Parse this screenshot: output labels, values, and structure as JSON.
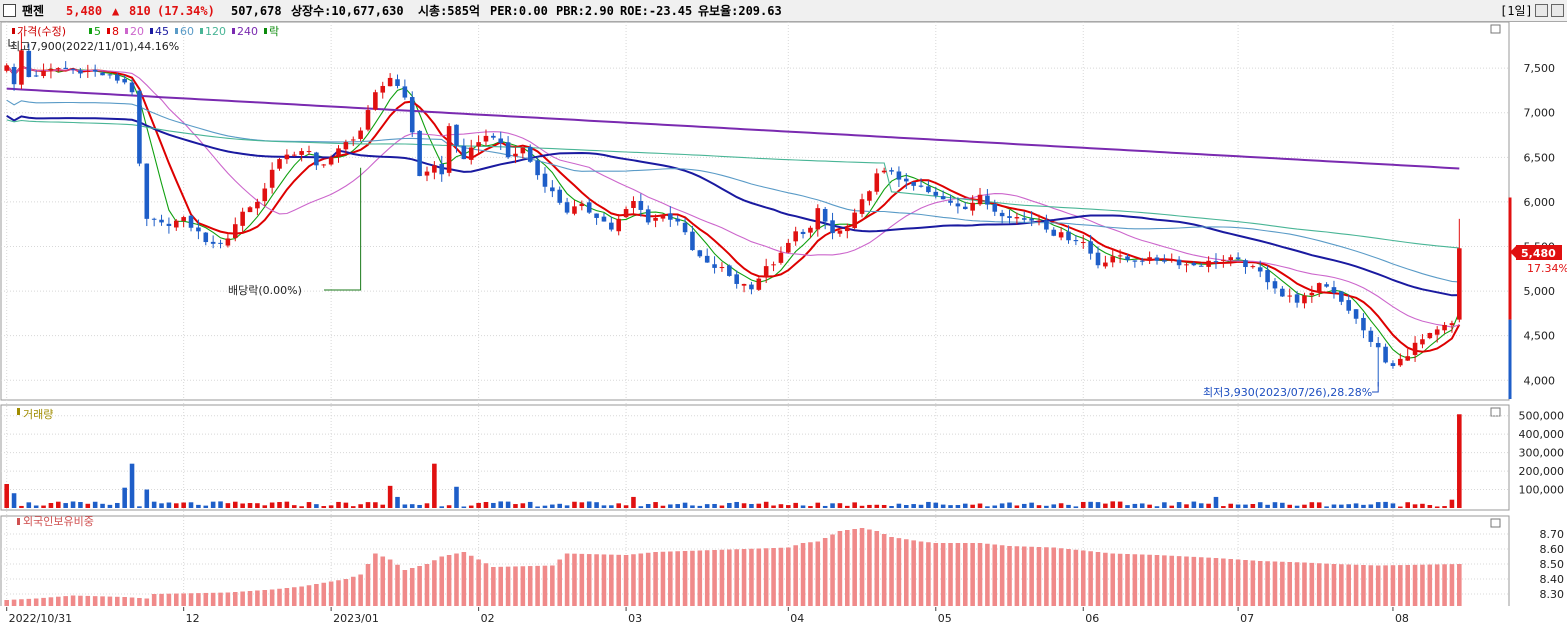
{
  "header": {
    "name": "팬젠",
    "price": "5,480",
    "arrow": "▲",
    "change": "810",
    "change_pct": "(17.34%)",
    "volume": "507,678",
    "listed": "상장수:10,677,630",
    "mktcap": "시총:585억",
    "per": "PER:0.00",
    "pbr": "PBR:2.90",
    "roe": "ROE:-23.45",
    "reserve": "유보율:209.63",
    "period": "[1일]"
  },
  "panels": {
    "price_legend": [
      {
        "label": "가격(수정)",
        "color": "#cc0000"
      },
      {
        "label": "5",
        "color": "#10a010"
      },
      {
        "label": "8",
        "color": "#dd0000"
      },
      {
        "label": "20",
        "color": "#cc66cc"
      },
      {
        "label": "45",
        "color": "#1a1aa0"
      },
      {
        "label": "60",
        "color": "#5a9bc7"
      },
      {
        "label": "120",
        "color": "#49b596"
      },
      {
        "label": "240",
        "color": "#7a2ab0"
      },
      {
        "label": "락",
        "color": "#0b8a0b"
      }
    ],
    "volume_title": "거래량",
    "foreign_title": "외국인보유비중",
    "high_note": "최고7,900(2022/11/01),44.16%",
    "low_note": "최저3,930(2023/07/26),28.28%",
    "dividend_note": "배당락(0.00%)",
    "last_price": "5,480",
    "last_pct": "17.34%"
  },
  "chart_data": [
    {
      "type": "candlestick",
      "title": "가격(수정)",
      "y_ticks": [
        "4,000",
        "4,500",
        "5,000",
        "5,500",
        "6,000",
        "6,500",
        "7,000",
        "7,500"
      ],
      "y_tick_values": [
        4000,
        4500,
        5000,
        5500,
        6000,
        6500,
        7000,
        7500
      ],
      "ylim": [
        3790,
        7950
      ],
      "x_labels": [
        "2022/10/31",
        "12",
        "2023/01",
        "02",
        "03",
        "04",
        "05",
        "06",
        "07",
        "08"
      ],
      "x_label_index": [
        0,
        24,
        44,
        64,
        84,
        106,
        126,
        146,
        167,
        188
      ],
      "ma_periods": [
        5,
        8,
        20,
        45,
        60,
        120,
        240
      ],
      "anchors": [
        [
          0,
          7550
        ],
        [
          1,
          7300
        ],
        [
          2,
          7700
        ],
        [
          3,
          7400
        ],
        [
          5,
          7450
        ],
        [
          7,
          7500
        ],
        [
          12,
          7450
        ],
        [
          16,
          7350
        ],
        [
          17,
          7250
        ],
        [
          18,
          6400
        ],
        [
          19,
          5800
        ],
        [
          21,
          5750
        ],
        [
          24,
          5800
        ],
        [
          26,
          5650
        ],
        [
          28,
          5500
        ],
        [
          30,
          5600
        ],
        [
          32,
          5900
        ],
        [
          34,
          6000
        ],
        [
          36,
          6350
        ],
        [
          38,
          6550
        ],
        [
          41,
          6550
        ],
        [
          42,
          6400
        ],
        [
          44,
          6500
        ],
        [
          46,
          6650
        ],
        [
          48,
          6800
        ],
        [
          50,
          7200
        ],
        [
          52,
          7400
        ],
        [
          54,
          7200
        ],
        [
          56,
          6300
        ],
        [
          58,
          6400
        ],
        [
          59,
          6300
        ],
        [
          60,
          6850
        ],
        [
          62,
          6450
        ],
        [
          64,
          6700
        ],
        [
          66,
          6750
        ],
        [
          68,
          6500
        ],
        [
          70,
          6600
        ],
        [
          72,
          6300
        ],
        [
          74,
          6100
        ],
        [
          76,
          5900
        ],
        [
          78,
          5950
        ],
        [
          80,
          5850
        ],
        [
          82,
          5700
        ],
        [
          85,
          6000
        ],
        [
          87,
          5800
        ],
        [
          89,
          5850
        ],
        [
          91,
          5800
        ],
        [
          93,
          5450
        ],
        [
          95,
          5300
        ],
        [
          97,
          5250
        ],
        [
          99,
          5100
        ],
        [
          101,
          5050
        ],
        [
          103,
          5250
        ],
        [
          105,
          5400
        ],
        [
          107,
          5650
        ],
        [
          109,
          5700
        ],
        [
          110,
          5900
        ],
        [
          112,
          5650
        ],
        [
          114,
          5700
        ],
        [
          116,
          6000
        ],
        [
          118,
          6300
        ],
        [
          120,
          6350
        ],
        [
          122,
          6200
        ],
        [
          124,
          6150
        ],
        [
          126,
          6050
        ],
        [
          128,
          6000
        ],
        [
          130,
          5950
        ],
        [
          132,
          6050
        ],
        [
          134,
          5900
        ],
        [
          136,
          5850
        ],
        [
          138,
          5800
        ],
        [
          140,
          5800
        ],
        [
          142,
          5650
        ],
        [
          144,
          5600
        ],
        [
          146,
          5550
        ],
        [
          148,
          5300
        ],
        [
          150,
          5400
        ],
        [
          152,
          5350
        ],
        [
          154,
          5350
        ],
        [
          156,
          5350
        ],
        [
          158,
          5350
        ],
        [
          160,
          5300
        ],
        [
          162,
          5300
        ],
        [
          164,
          5350
        ],
        [
          166,
          5350
        ],
        [
          168,
          5300
        ],
        [
          170,
          5200
        ],
        [
          172,
          5050
        ],
        [
          173,
          4950
        ],
        [
          175,
          4900
        ],
        [
          177,
          4950
        ],
        [
          178,
          5100
        ],
        [
          180,
          5000
        ],
        [
          182,
          4800
        ],
        [
          184,
          4550
        ],
        [
          186,
          4350
        ],
        [
          187,
          4200
        ],
        [
          188,
          4150
        ],
        [
          190,
          4300
        ],
        [
          191,
          4400
        ],
        [
          193,
          4500
        ],
        [
          195,
          4600
        ],
        [
          196,
          4620
        ],
        [
          197,
          5480
        ]
      ]
    },
    {
      "type": "bar",
      "title": "거래량",
      "y_ticks": [
        "100,000",
        "200,000",
        "300,000",
        "400,000",
        "500,000"
      ],
      "y_tick_values": [
        100000,
        200000,
        300000,
        400000,
        500000
      ],
      "ylim": [
        0,
        520000
      ],
      "last_value": 507678,
      "spikes": [
        {
          "i": 0,
          "v": 130000
        },
        {
          "i": 1,
          "v": 80000
        },
        {
          "i": 16,
          "v": 110000
        },
        {
          "i": 17,
          "v": 240000
        },
        {
          "i": 19,
          "v": 100000
        },
        {
          "i": 52,
          "v": 120000
        },
        {
          "i": 53,
          "v": 60000
        },
        {
          "i": 58,
          "v": 240000
        },
        {
          "i": 61,
          "v": 115000
        },
        {
          "i": 85,
          "v": 60000
        },
        {
          "i": 164,
          "v": 60000
        },
        {
          "i": 196,
          "v": 45000
        },
        {
          "i": 197,
          "v": 507678
        }
      ]
    },
    {
      "type": "bar",
      "title": "외국인보유비중",
      "y_ticks": [
        "8.30",
        "8.40",
        "8.50",
        "8.60",
        "8.70"
      ],
      "y_tick_values": [
        8.3,
        8.4,
        8.5,
        8.6,
        8.7
      ],
      "ylim": [
        8.22,
        8.78
      ],
      "anchors": [
        [
          0,
          8.26
        ],
        [
          4,
          8.27
        ],
        [
          9,
          8.29
        ],
        [
          16,
          8.28
        ],
        [
          19,
          8.27
        ],
        [
          20,
          8.3
        ],
        [
          30,
          8.31
        ],
        [
          36,
          8.33
        ],
        [
          40,
          8.35
        ],
        [
          46,
          8.4
        ],
        [
          48,
          8.43
        ],
        [
          50,
          8.57
        ],
        [
          52,
          8.53
        ],
        [
          54,
          8.46
        ],
        [
          57,
          8.5
        ],
        [
          59,
          8.55
        ],
        [
          62,
          8.58
        ],
        [
          64,
          8.53
        ],
        [
          66,
          8.48
        ],
        [
          74,
          8.49
        ],
        [
          76,
          8.57
        ],
        [
          84,
          8.56
        ],
        [
          88,
          8.58
        ],
        [
          94,
          8.59
        ],
        [
          100,
          8.6
        ],
        [
          106,
          8.61
        ],
        [
          108,
          8.64
        ],
        [
          110,
          8.65
        ],
        [
          113,
          8.72
        ],
        [
          116,
          8.74
        ],
        [
          118,
          8.72
        ],
        [
          120,
          8.68
        ],
        [
          124,
          8.65
        ],
        [
          126,
          8.64
        ],
        [
          132,
          8.64
        ],
        [
          136,
          8.62
        ],
        [
          142,
          8.61
        ],
        [
          150,
          8.57
        ],
        [
          156,
          8.56
        ],
        [
          164,
          8.54
        ],
        [
          170,
          8.52
        ],
        [
          176,
          8.51
        ],
        [
          180,
          8.5
        ],
        [
          186,
          8.49
        ],
        [
          197,
          8.5
        ]
      ]
    }
  ]
}
